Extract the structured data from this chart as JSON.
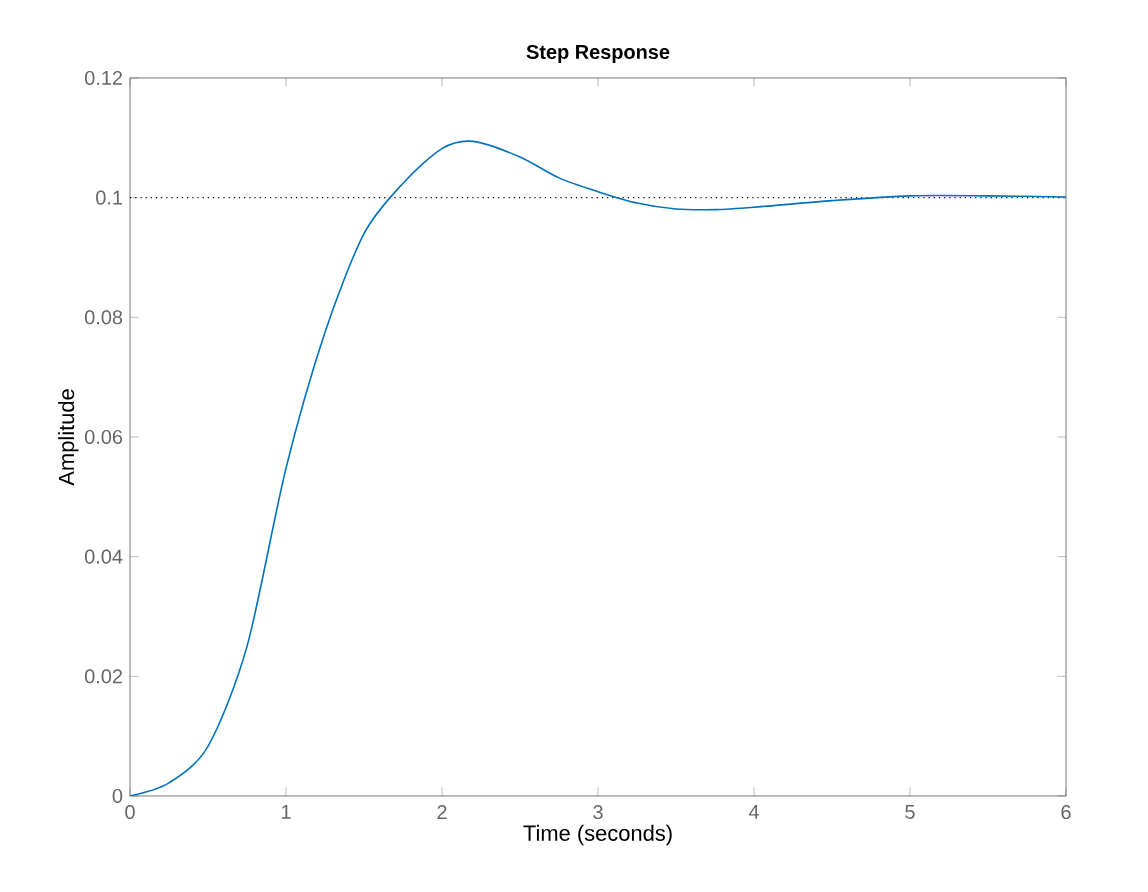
{
  "chart_data": {
    "type": "line",
    "title": "Step Response",
    "xlabel": "Time (seconds)",
    "ylabel": "Amplitude",
    "x": [
      0,
      0.25,
      0.5,
      0.75,
      1.0,
      1.25,
      1.5,
      1.75,
      2.0,
      2.2,
      2.5,
      2.75,
      3.0,
      3.25,
      3.5,
      3.75,
      4.0,
      4.5,
      5.0,
      5.5,
      6.0
    ],
    "series": [
      {
        "color": "#0072bd",
        "values": [
          0,
          0.0022,
          0.0083,
          0.025,
          0.0548,
          0.0775,
          0.094,
          0.1024,
          0.1082,
          0.1094,
          0.1068,
          0.1033,
          0.101,
          0.0991,
          0.0981,
          0.098,
          0.0984,
          0.0995,
          0.1003,
          0.1003,
          0.1001
        ]
      }
    ],
    "xlim": [
      0,
      6
    ],
    "ylim": [
      0,
      0.12
    ],
    "xticks": [
      0,
      1,
      2,
      3,
      4,
      5,
      6
    ],
    "yticks": [
      0,
      0.02,
      0.04,
      0.06,
      0.08,
      0.1,
      0.12
    ],
    "ref_lines": [
      {
        "axis": "y",
        "value": 0.1,
        "color": "#000000",
        "line_style": "dotted"
      }
    ],
    "grid": false,
    "marker": "none",
    "line_style": "solid"
  }
}
